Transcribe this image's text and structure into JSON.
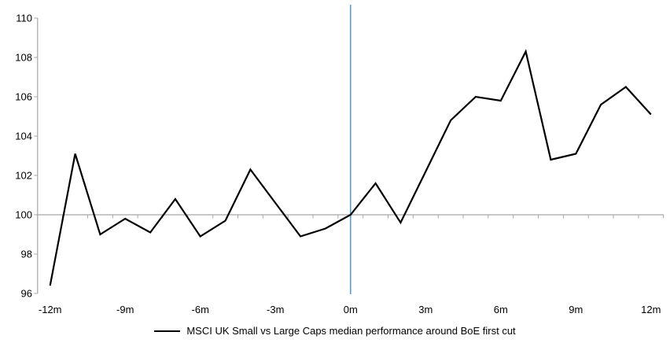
{
  "chart_data": {
    "type": "line",
    "title": "",
    "xlabel": "",
    "ylabel": "",
    "x_months": [
      -12,
      -11,
      -10,
      -9,
      -8,
      -7,
      -6,
      -5,
      -4,
      -3,
      -2,
      -1,
      0,
      1,
      2,
      3,
      4,
      5,
      6,
      7,
      8,
      9,
      10,
      11,
      12
    ],
    "series": [
      {
        "name": "MSCI UK Small vs Large Caps median performance around BoE first cut",
        "color": "#000000",
        "values": [
          96.4,
          103.1,
          99.0,
          99.8,
          99.1,
          100.8,
          98.9,
          99.7,
          102.3,
          100.6,
          98.9,
          99.3,
          100.0,
          101.6,
          99.6,
          102.2,
          104.8,
          106.0,
          105.8,
          108.3,
          102.8,
          103.1,
          105.6,
          106.5,
          105.1
        ]
      }
    ],
    "x_ticks": [
      {
        "month": -12,
        "label": "-12m"
      },
      {
        "month": -9,
        "label": "-9m"
      },
      {
        "month": -6,
        "label": "-6m"
      },
      {
        "month": -3,
        "label": "-3m"
      },
      {
        "month": 0,
        "label": "0m"
      },
      {
        "month": 3,
        "label": "3m"
      },
      {
        "month": 6,
        "label": "6m"
      },
      {
        "month": 9,
        "label": "9m"
      },
      {
        "month": 12,
        "label": "12m"
      }
    ],
    "y_ticks": [
      96,
      98,
      100,
      102,
      104,
      106,
      108,
      110
    ],
    "ylim": [
      96,
      110
    ],
    "baseline": 100,
    "event_line": {
      "month": 0,
      "color": "#5B9BD5"
    },
    "colors": {
      "axis": "#A6A6A6",
      "text": "#000000"
    },
    "grid": false,
    "legend_position": "bottom-center"
  }
}
